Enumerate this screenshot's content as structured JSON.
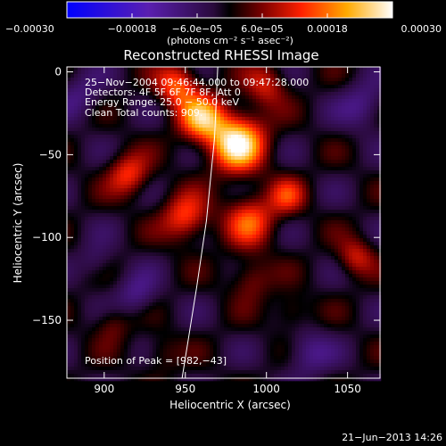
{
  "chart_data": {
    "type": "heatmap",
    "title": "Reconstructed RHESSI Image",
    "xlabel": "Heliocentric X (arcsec)",
    "ylabel": "Heliocentric Y (arcsec)",
    "xlim": [
      877,
      1070
    ],
    "ylim": [
      -185,
      3
    ],
    "xticks": [
      900,
      950,
      1000,
      1050
    ],
    "xtick_labels": [
      "900",
      "950",
      "1000",
      "1050"
    ],
    "yticks": [
      0,
      -50,
      -100,
      -150
    ],
    "ytick_labels": [
      "0",
      "−50",
      "−100",
      "−150"
    ],
    "colorbar": {
      "range": [
        -0.0003,
        0.0003
      ],
      "ticks": [
        -0.0003,
        -0.00018,
        -6e-05,
        6e-05,
        0.00018,
        0.0003
      ],
      "tick_labels": [
        "−0.00030",
        "−0.00018",
        "−6.0e−05",
        "6.0e−05",
        "0.00018",
        "0.00030"
      ],
      "unit_label": "(photons cm⁻² s⁻¹ asec⁻²)"
    },
    "annotations": [
      "25−Nov−2004 09:46:44.000 to 09:47:28.000",
      "Detectors: 4F 5F 6F 7F 8F, Att 0",
      "Energy Range: 25.0 − 50.0 keV",
      "Clean     Total counts: 909."
    ],
    "peak_label": "Position of Peak = [982,−43]",
    "peak": [
      982,
      -43
    ],
    "sources": [
      {
        "x": 982,
        "y": -43,
        "amp": 1.0,
        "sigma": 12
      },
      {
        "x": 960,
        "y": -28,
        "amp": 0.75,
        "sigma": 10
      },
      {
        "x": 945,
        "y": -8,
        "amp": 0.6,
        "sigma": 9
      },
      {
        "x": 1000,
        "y": -8,
        "amp": 0.4,
        "sigma": 9
      },
      {
        "x": 915,
        "y": -62,
        "amp": 0.5,
        "sigma": 9
      },
      {
        "x": 950,
        "y": -88,
        "amp": 0.55,
        "sigma": 10
      },
      {
        "x": 990,
        "y": -90,
        "amp": 0.55,
        "sigma": 11
      },
      {
        "x": 1013,
        "y": -75,
        "amp": 0.42,
        "sigma": 8
      },
      {
        "x": 1055,
        "y": -112,
        "amp": 0.4,
        "sigma": 8
      },
      {
        "x": 990,
        "y": -125,
        "amp": 0.3,
        "sigma": 9
      },
      {
        "x": 905,
        "y": -152,
        "amp": 0.25,
        "sigma": 8
      },
      {
        "x": 1015,
        "y": -145,
        "amp": 0.25,
        "sigma": 8
      },
      {
        "x": 935,
        "y": -170,
        "amp": 0.2,
        "sigma": 8
      },
      {
        "x": 885,
        "y": -15,
        "amp": -0.25,
        "sigma": 10
      },
      {
        "x": 920,
        "y": -135,
        "amp": -0.3,
        "sigma": 9
      },
      {
        "x": 1060,
        "y": -20,
        "amp": -0.3,
        "sigma": 10
      },
      {
        "x": 1025,
        "y": -170,
        "amp": -0.3,
        "sigma": 10
      },
      {
        "x": 895,
        "y": -115,
        "amp": -0.2,
        "sigma": 8
      }
    ],
    "limb_curve": [
      [
        970,
        3
      ],
      [
        968,
        -40
      ],
      [
        963,
        -90
      ],
      [
        957,
        -130
      ],
      [
        948,
        -185
      ]
    ],
    "colors": {
      "background": "#000000",
      "text": "#ffffff",
      "axes": "#ffffff"
    }
  },
  "footer": {
    "timestamp": "21−Jun−2013 14:26"
  }
}
